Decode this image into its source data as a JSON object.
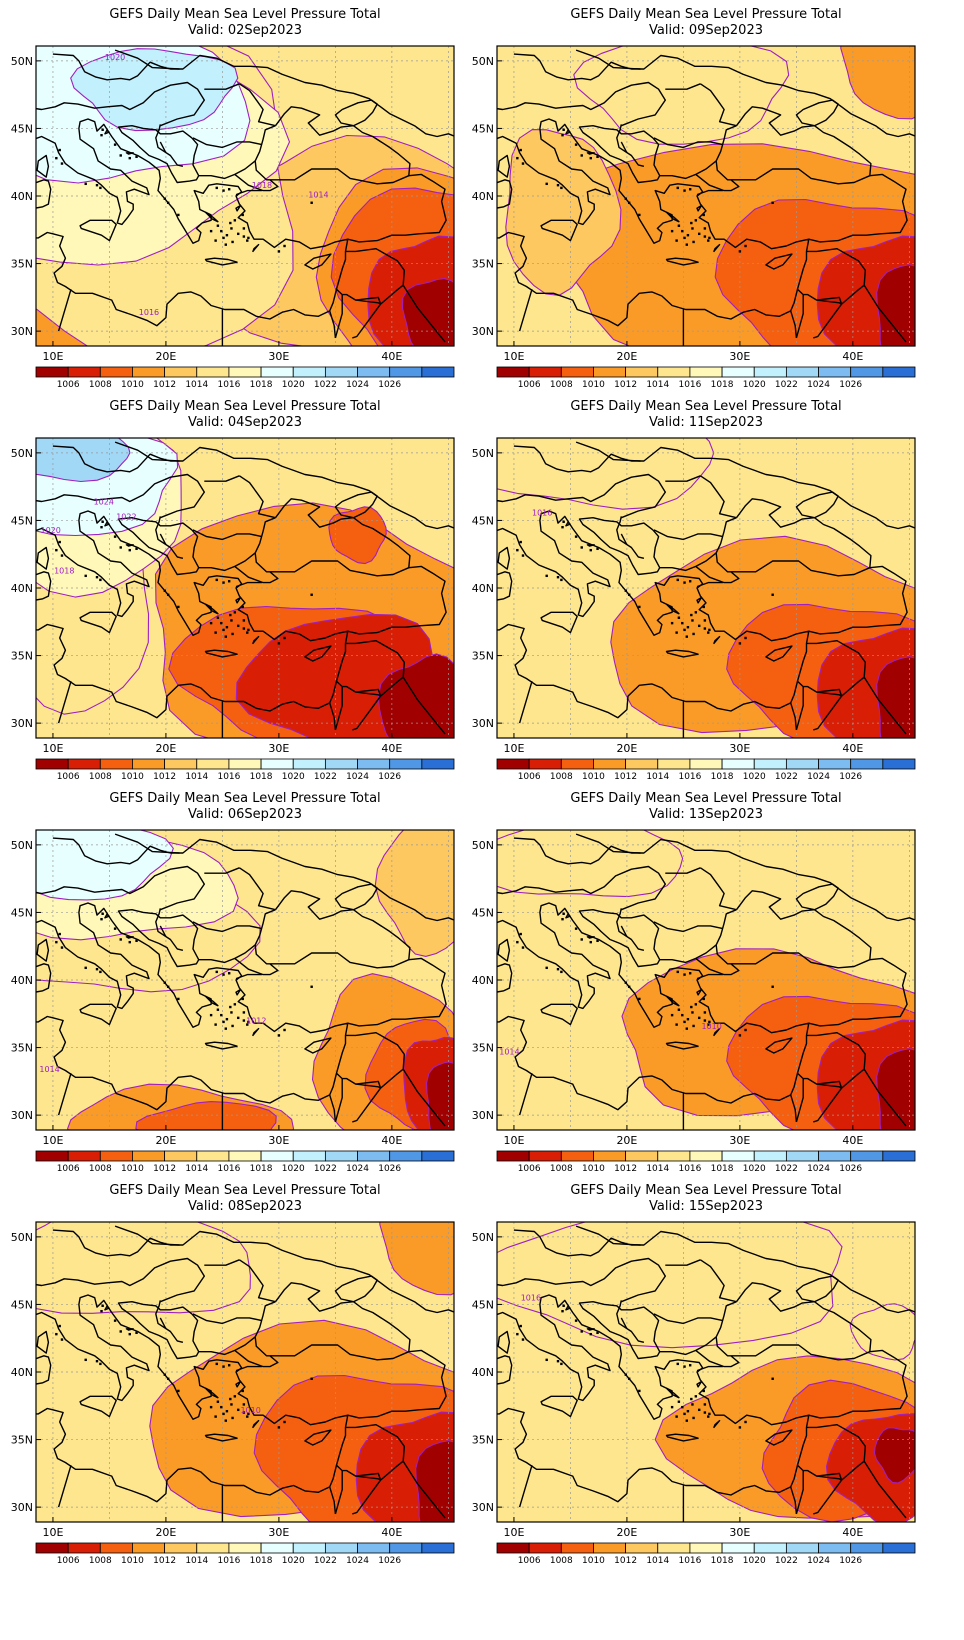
{
  "panels": [
    {
      "title": "GEFS Daily Mean Sea Level Pressure Total",
      "valid": "Valid: 02Sep2023",
      "labels": [
        {
          "t": "1020",
          "lon": 15.5,
          "lat": 50.3
        },
        {
          "t": "1018",
          "lon": 28.5,
          "lat": 40.8
        },
        {
          "t": "1014",
          "lon": 33.5,
          "lat": 40.1
        },
        {
          "t": "1016",
          "lon": 18.5,
          "lat": 31.4
        }
      ],
      "blobs": [
        {
          "l": 3,
          "lon": 8,
          "lat": 29,
          "rx": 8,
          "ry": 7
        },
        {
          "l": 4,
          "lon": 36,
          "lat": 36,
          "rx": 14,
          "ry": 8
        },
        {
          "l": 3,
          "lon": 45,
          "lat": 34,
          "rx": 12,
          "ry": 8
        },
        {
          "l": 2,
          "lon": 44,
          "lat": 34,
          "rx": 9,
          "ry": 7
        },
        {
          "l": 1,
          "lon": 43,
          "lat": 32,
          "rx": 5,
          "ry": 5
        },
        {
          "l": 0,
          "lon": 44,
          "lat": 31,
          "rx": 3,
          "ry": 3
        },
        {
          "l": 5,
          "lon": 17,
          "lat": 40,
          "rx": 15,
          "ry": 12
        },
        {
          "l": 6,
          "lon": 14,
          "lat": 44,
          "rx": 15,
          "ry": 9
        },
        {
          "l": 7,
          "lon": 15,
          "lat": 47,
          "rx": 12,
          "ry": 6
        },
        {
          "l": 8,
          "lon": 19,
          "lat": 48,
          "rx": 7,
          "ry": 3
        }
      ]
    },
    {
      "title": "GEFS Daily Mean Sea Level Pressure Total",
      "valid": "Valid: 09Sep2023",
      "labels": [],
      "blobs": [
        {
          "l": 3,
          "lon": 32,
          "lat": 36,
          "rx": 20,
          "ry": 8
        },
        {
          "l": 2,
          "lon": 38,
          "lat": 34,
          "rx": 10,
          "ry": 6
        },
        {
          "l": 3,
          "lon": 44,
          "lat": 50,
          "rx": 5,
          "ry": 4
        },
        {
          "l": 1,
          "lon": 43,
          "lat": 32,
          "rx": 6,
          "ry": 5
        },
        {
          "l": 0,
          "lon": 45,
          "lat": 31,
          "rx": 3,
          "ry": 4
        },
        {
          "l": 5,
          "lon": 25,
          "lat": 48,
          "rx": 9,
          "ry": 4
        },
        {
          "l": 4,
          "lon": 14,
          "lat": 39,
          "rx": 5,
          "ry": 6
        }
      ]
    },
    {
      "title": "GEFS Daily Mean Sea Level Pressure Total",
      "valid": "Valid: 04Sep2023",
      "labels": [
        {
          "t": "1024",
          "lon": 14.5,
          "lat": 46.4
        },
        {
          "t": "1022",
          "lon": 16.5,
          "lat": 45.3
        },
        {
          "t": "1020",
          "lon": 9.8,
          "lat": 44.3
        },
        {
          "t": "1018",
          "lon": 11,
          "lat": 41.3
        }
      ],
      "blobs": [
        {
          "l": 3,
          "lon": 33,
          "lat": 37,
          "rx": 15,
          "ry": 9
        },
        {
          "l": 2,
          "lon": 31,
          "lat": 34,
          "rx": 10,
          "ry": 5
        },
        {
          "l": 1,
          "lon": 36,
          "lat": 33,
          "rx": 9,
          "ry": 5
        },
        {
          "l": 0,
          "lon": 43,
          "lat": 31,
          "rx": 4,
          "ry": 4
        },
        {
          "l": 2,
          "lon": 37,
          "lat": 44,
          "rx": 2.5,
          "ry": 2
        },
        {
          "l": 5,
          "lon": 11,
          "lat": 40,
          "rx": 8,
          "ry": 9
        },
        {
          "l": 6,
          "lon": 12,
          "lat": 46,
          "rx": 10,
          "ry": 6
        },
        {
          "l": 7,
          "lon": 12,
          "lat": 48,
          "rx": 9,
          "ry": 4
        },
        {
          "l": 9,
          "lon": 11,
          "lat": 50,
          "rx": 6,
          "ry": 2
        }
      ]
    },
    {
      "title": "GEFS Daily Mean Sea Level Pressure Total",
      "valid": "Valid: 11Sep2023",
      "labels": [
        {
          "t": "1016",
          "lon": 12.5,
          "lat": 45.6
        }
      ],
      "blobs": [
        {
          "l": 3,
          "lon": 34,
          "lat": 36,
          "rx": 16,
          "ry": 7
        },
        {
          "l": 2,
          "lon": 38,
          "lat": 34,
          "rx": 9,
          "ry": 5
        },
        {
          "l": 1,
          "lon": 43,
          "lat": 32,
          "rx": 6,
          "ry": 5
        },
        {
          "l": 0,
          "lon": 45,
          "lat": 31,
          "rx": 3,
          "ry": 4
        },
        {
          "l": 5,
          "lon": 17,
          "lat": 50,
          "rx": 11,
          "ry": 4
        }
      ]
    },
    {
      "title": "GEFS Daily Mean Sea Level Pressure Total",
      "valid": "Valid: 06Sep2023",
      "labels": [
        {
          "t": "1012",
          "lon": 28,
          "lat": 37
        },
        {
          "t": "1014",
          "lon": 9.7,
          "lat": 33.4
        }
      ],
      "blobs": [
        {
          "l": 3,
          "lon": 21,
          "lat": 29,
          "rx": 10,
          "ry": 3
        },
        {
          "l": 2,
          "lon": 24,
          "lat": 29,
          "rx": 6,
          "ry": 2
        },
        {
          "l": 3,
          "lon": 40,
          "lat": 34,
          "rx": 7,
          "ry": 6
        },
        {
          "l": 2,
          "lon": 42,
          "lat": 33,
          "rx": 4,
          "ry": 4
        },
        {
          "l": 1,
          "lon": 44,
          "lat": 32,
          "rx": 3,
          "ry": 4
        },
        {
          "l": 0,
          "lon": 45,
          "lat": 31,
          "rx": 2,
          "ry": 3
        },
        {
          "l": 4,
          "lon": 43,
          "lat": 47,
          "rx": 4,
          "ry": 5
        },
        {
          "l": 5,
          "lon": 16,
          "lat": 44,
          "rx": 12,
          "ry": 5
        },
        {
          "l": 6,
          "lon": 15,
          "lat": 47,
          "rx": 11,
          "ry": 4
        },
        {
          "l": 7,
          "lon": 13,
          "lat": 49,
          "rx": 7,
          "ry": 3
        }
      ]
    },
    {
      "title": "GEFS Daily Mean Sea Level Pressure Total",
      "valid": "Valid: 13Sep2023",
      "labels": [
        {
          "t": "1010",
          "lon": 27.5,
          "lat": 36.6
        },
        {
          "t": "1014",
          "lon": 9.6,
          "lat": 34.7
        }
      ],
      "blobs": [
        {
          "l": 3,
          "lon": 33,
          "lat": 36,
          "rx": 14,
          "ry": 6
        },
        {
          "l": 2,
          "lon": 38,
          "lat": 34,
          "rx": 9,
          "ry": 5
        },
        {
          "l": 1,
          "lon": 43,
          "lat": 32,
          "rx": 6,
          "ry": 5
        },
        {
          "l": 0,
          "lon": 45,
          "lat": 31,
          "rx": 3,
          "ry": 4
        },
        {
          "l": 5,
          "lon": 16,
          "lat": 49,
          "rx": 9,
          "ry": 3
        }
      ]
    },
    {
      "title": "GEFS Daily Mean Sea Level Pressure Total",
      "valid": "Valid: 08Sep2023",
      "labels": [
        {
          "t": "1010",
          "lon": 27.5,
          "lat": 37.2
        }
      ],
      "blobs": [
        {
          "l": 3,
          "lon": 34,
          "lat": 36,
          "rx": 16,
          "ry": 7
        },
        {
          "l": 2,
          "lon": 38,
          "lat": 34,
          "rx": 10,
          "ry": 6
        },
        {
          "l": 1,
          "lon": 43,
          "lat": 32,
          "rx": 6,
          "ry": 5
        },
        {
          "l": 0,
          "lon": 45,
          "lat": 31,
          "rx": 3,
          "ry": 4
        },
        {
          "l": 3,
          "lon": 44,
          "lat": 50,
          "rx": 5,
          "ry": 4
        },
        {
          "l": 5,
          "lon": 16,
          "lat": 48,
          "rx": 12,
          "ry": 4
        }
      ]
    },
    {
      "title": "GEFS Daily Mean Sea Level Pressure Total",
      "valid": "Valid: 15Sep2023",
      "labels": [
        {
          "t": "1016",
          "lon": 11.5,
          "lat": 45.5
        }
      ],
      "blobs": [
        {
          "l": 3,
          "lon": 36,
          "lat": 35,
          "rx": 12,
          "ry": 6
        },
        {
          "l": 2,
          "lon": 40,
          "lat": 34,
          "rx": 8,
          "ry": 5
        },
        {
          "l": 1,
          "lon": 43,
          "lat": 33,
          "rx": 5,
          "ry": 4
        },
        {
          "l": 0,
          "lon": 44,
          "lat": 34,
          "rx": 2,
          "ry": 2
        },
        {
          "l": 5,
          "lon": 24,
          "lat": 47,
          "rx": 16,
          "ry": 5
        },
        {
          "l": 5,
          "lon": 43,
          "lat": 43,
          "rx": 3,
          "ry": 2
        }
      ]
    }
  ],
  "lon_ticks": [
    "10E",
    "20E",
    "30E",
    "40E"
  ],
  "lat_ticks": [
    "50N",
    "45N",
    "40N",
    "35N",
    "30N"
  ],
  "colorbar": {
    "labels": [
      "1006",
      "1008",
      "1010",
      "1012",
      "1014",
      "1016",
      "1018",
      "1020",
      "1022",
      "1024",
      "1026"
    ],
    "colors": [
      "#a00000",
      "#d81e05",
      "#f56010",
      "#fa9b28",
      "#fdc85f",
      "#fde68e",
      "#fff8b8",
      "#e8ffff",
      "#c2f0fd",
      "#a0d8f6",
      "#7cbcf0",
      "#5098e6",
      "#2a6fd6"
    ]
  }
}
